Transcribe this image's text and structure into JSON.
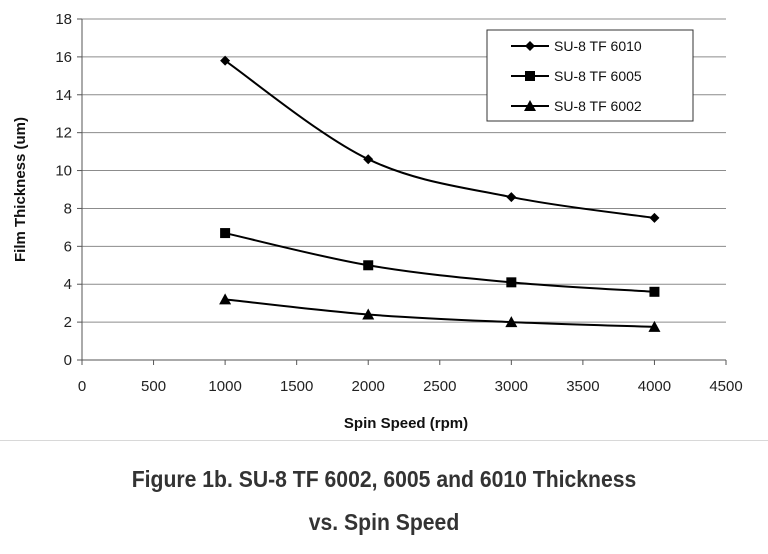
{
  "caption": {
    "line1": "Figure 1b. SU-8 TF 6002, 6005 and 6010 Thickness",
    "line2": "vs. Spin Speed"
  },
  "chart_data": {
    "type": "line",
    "xlabel": "Spin Speed (rpm)",
    "ylabel": "Film Thickness (um)",
    "xlim": [
      0,
      4500
    ],
    "ylim": [
      0,
      18
    ],
    "xticks": [
      0,
      500,
      1000,
      1500,
      2000,
      2500,
      3000,
      3500,
      4000,
      4500
    ],
    "yticks": [
      0,
      2,
      4,
      6,
      8,
      10,
      12,
      14,
      16,
      18
    ],
    "grid": "horizontal",
    "legend": "top-right",
    "series": [
      {
        "name": "SU-8 TF 6010",
        "marker": "diamond",
        "x": [
          1000,
          2000,
          3000,
          4000
        ],
        "y": [
          15.8,
          10.6,
          8.6,
          7.5
        ]
      },
      {
        "name": "SU-8 TF 6005",
        "marker": "square",
        "x": [
          1000,
          2000,
          3000,
          4000
        ],
        "y": [
          6.7,
          5.0,
          4.1,
          3.6
        ]
      },
      {
        "name": "SU-8 TF 6002",
        "marker": "triangle",
        "x": [
          1000,
          2000,
          3000,
          4000
        ],
        "y": [
          3.2,
          2.4,
          2.0,
          1.75
        ]
      }
    ]
  }
}
